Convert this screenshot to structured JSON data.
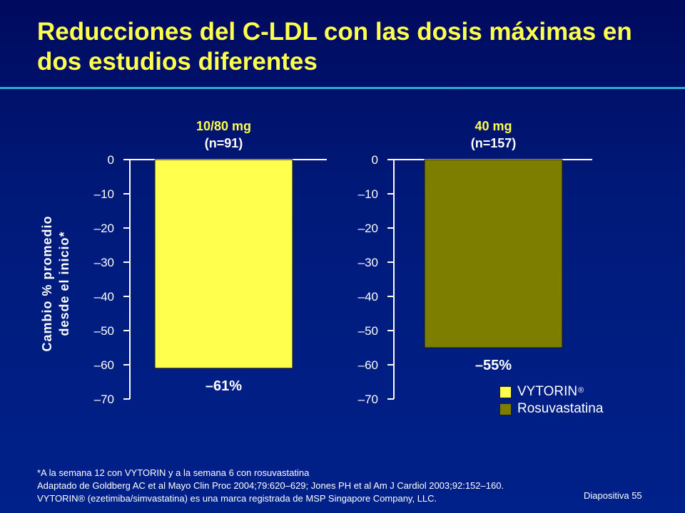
{
  "title": "Reducciones del C-LDL con las dosis máximas en dos estudios diferentes",
  "colors": {
    "vytorin": "#ffff4d",
    "rosuvastatina": "#7d7d00",
    "title": "#ffff4d",
    "accent_rule": "#2ea8d8"
  },
  "chart_data": {
    "type": "bar",
    "ylabel": "Cambio % promedio desde el inicio*",
    "ylabel_lines": [
      "Cambio % promedio",
      "desde el inicio*"
    ],
    "ylim": [
      -70,
      0
    ],
    "yticks": [
      "0",
      "–10",
      "–20",
      "–30",
      "–40",
      "–50",
      "–60",
      "–70"
    ],
    "ytick_values": [
      0,
      -10,
      -20,
      -30,
      -40,
      -50,
      -60,
      -70
    ],
    "grid": false,
    "legend_position": "bottom-right",
    "panels": [
      {
        "header_line1": "10/80 mg",
        "header_line2": "(n=91)",
        "series": "VYTORIN",
        "value": -61,
        "label": "–61%"
      },
      {
        "header_line1": "40 mg",
        "header_line2": "(n=157)",
        "series": "Rosuvastatina",
        "value": -55,
        "label": "–55%"
      }
    ],
    "legend": [
      {
        "name": "VYTORIN",
        "mark": "®"
      },
      {
        "name": "Rosuvastatina",
        "mark": ""
      }
    ]
  },
  "footnotes": {
    "line1": "*A la semana 12 con VYTORIN y a la semana 6 con rosuvastatina",
    "line2": "Adaptado de Goldberg AC et al Mayo Clin Proc 2004;79:620–629; Jones PH et al Am J Cardiol 2003;92:152–160.",
    "line3": "VYTORIN® (ezetimiba/simvastatina) es una marca registrada de MSP Singapore Company, LLC."
  },
  "slide_number": "Diapositiva 55"
}
